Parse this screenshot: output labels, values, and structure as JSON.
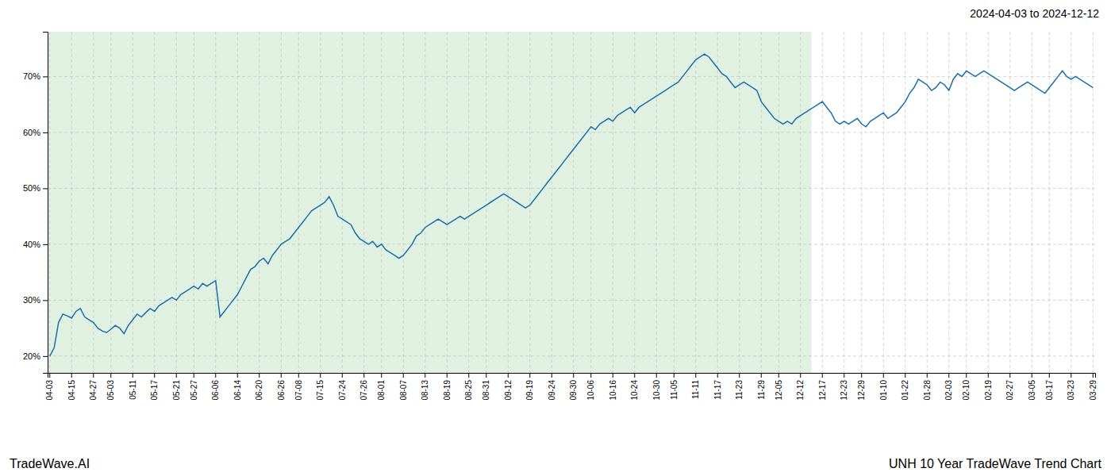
{
  "chart_data": {
    "type": "line",
    "title": "2024-04-03 to 2024-12-12",
    "annotations": [
      "TradeWave.AI",
      "UNH 10 Year TradeWave Trend Chart"
    ],
    "color": "#1a6eab",
    "grid": true,
    "band": {
      "from": "04-03",
      "to": "12-12",
      "color": "#c8e6c9"
    },
    "ylim": [
      17,
      78
    ],
    "yticks": [
      {
        "value": 20,
        "label": "20%"
      },
      {
        "value": 30,
        "label": "30%"
      },
      {
        "value": 40,
        "label": "40%"
      },
      {
        "value": 50,
        "label": "50%"
      },
      {
        "value": 60,
        "label": "60%"
      },
      {
        "value": 70,
        "label": "70%"
      }
    ],
    "categories": [
      "04-03",
      null,
      null,
      null,
      null,
      "04-15",
      null,
      null,
      null,
      null,
      "04-27",
      null,
      null,
      null,
      "05-03",
      null,
      null,
      null,
      null,
      "05-11",
      null,
      null,
      null,
      null,
      "05-17",
      null,
      null,
      null,
      null,
      "05-21",
      null,
      null,
      null,
      "05-27",
      null,
      null,
      null,
      null,
      "06-06",
      null,
      null,
      null,
      null,
      "06-14",
      null,
      null,
      null,
      null,
      "06-20",
      null,
      null,
      null,
      null,
      "06-26",
      null,
      null,
      null,
      "07-08",
      null,
      null,
      null,
      null,
      "07-15",
      null,
      null,
      null,
      null,
      "07-24",
      null,
      null,
      null,
      null,
      "07-26",
      null,
      null,
      null,
      "08-01",
      null,
      null,
      null,
      null,
      "08-07",
      null,
      null,
      null,
      null,
      "08-13",
      null,
      null,
      null,
      null,
      "08-19",
      null,
      null,
      null,
      null,
      "08-25",
      null,
      null,
      null,
      "08-31",
      null,
      null,
      null,
      null,
      "09-12",
      null,
      null,
      null,
      null,
      "09-19",
      null,
      null,
      null,
      null,
      "09-24",
      null,
      null,
      null,
      null,
      "09-30",
      null,
      null,
      null,
      "10-06",
      null,
      null,
      null,
      null,
      "10-16",
      null,
      null,
      null,
      null,
      "10-24",
      null,
      null,
      null,
      null,
      "10-30",
      null,
      null,
      null,
      "11-05",
      null,
      null,
      null,
      null,
      "11-11",
      null,
      null,
      null,
      null,
      "11-17",
      null,
      null,
      null,
      null,
      "11-23",
      null,
      null,
      null,
      null,
      "11-29",
      null,
      null,
      null,
      "12-05",
      null,
      null,
      null,
      null,
      "12-12",
      null,
      null,
      null,
      null,
      "12-17",
      null,
      null,
      null,
      null,
      "12-23",
      null,
      null,
      null,
      "12-29",
      null,
      null,
      null,
      null,
      "01-10",
      null,
      null,
      null,
      null,
      "01-22",
      null,
      null,
      null,
      null,
      "01-28",
      null,
      null,
      null,
      null,
      "02-03",
      null,
      null,
      null,
      "02-10",
      null,
      null,
      null,
      null,
      "02-19",
      null,
      null,
      null,
      null,
      "02-27",
      null,
      null,
      null,
      null,
      "03-05",
      null,
      null,
      null,
      "03-17",
      null,
      null,
      null,
      null,
      "03-23",
      null,
      null,
      null,
      null,
      "03-29"
    ],
    "values": [
      20.0,
      21.5,
      26.0,
      27.5,
      27.2,
      26.8,
      28.0,
      28.5,
      27.0,
      26.5,
      26.0,
      25.0,
      24.5,
      24.2,
      24.8,
      25.5,
      25.0,
      24.0,
      25.5,
      26.5,
      27.5,
      27.0,
      27.8,
      28.5,
      28.0,
      29.0,
      29.5,
      30.0,
      30.5,
      30.0,
      31.0,
      31.5,
      32.0,
      32.5,
      32.0,
      33.0,
      32.5,
      33.0,
      33.5,
      27.0,
      28.0,
      29.0,
      30.0,
      31.0,
      32.5,
      34.0,
      35.5,
      36.0,
      37.0,
      37.5,
      36.5,
      38.0,
      39.0,
      40.0,
      40.5,
      41.0,
      42.0,
      43.0,
      44.0,
      45.0,
      46.0,
      46.5,
      47.0,
      47.5,
      48.5,
      47.0,
      45.0,
      44.5,
      44.0,
      43.5,
      42.0,
      41.0,
      40.5,
      40.0,
      40.5,
      39.5,
      40.0,
      39.0,
      38.5,
      38.0,
      37.5,
      38.0,
      39.0,
      40.0,
      41.5,
      42.0,
      43.0,
      43.5,
      44.0,
      44.5,
      44.0,
      43.5,
      44.0,
      44.5,
      45.0,
      44.5,
      45.0,
      45.5,
      46.0,
      46.5,
      47.0,
      47.5,
      48.0,
      48.5,
      49.0,
      48.5,
      48.0,
      47.5,
      47.0,
      46.5,
      47.0,
      48.0,
      49.0,
      50.0,
      51.0,
      52.0,
      53.0,
      54.0,
      55.0,
      56.0,
      57.0,
      58.0,
      59.0,
      60.0,
      61.0,
      60.5,
      61.5,
      62.0,
      62.5,
      62.0,
      63.0,
      63.5,
      64.0,
      64.5,
      63.5,
      64.5,
      65.0,
      65.5,
      66.0,
      66.5,
      67.0,
      67.5,
      68.0,
      68.5,
      69.0,
      70.0,
      71.0,
      72.0,
      73.0,
      73.5,
      74.0,
      73.5,
      72.5,
      71.5,
      70.5,
      70.0,
      69.0,
      68.0,
      68.5,
      69.0,
      68.5,
      68.0,
      67.5,
      65.5,
      64.5,
      63.5,
      62.5,
      62.0,
      61.5,
      62.0,
      61.5,
      62.5,
      63.0,
      63.5,
      64.0,
      64.5,
      65.0,
      65.5,
      64.5,
      63.5,
      62.0,
      61.5,
      62.0,
      61.5,
      62.0,
      62.5,
      61.5,
      61.0,
      62.0,
      62.5,
      63.0,
      63.5,
      62.5,
      63.0,
      63.5,
      64.5,
      65.5,
      67.0,
      68.0,
      69.5,
      69.0,
      68.5,
      67.5,
      68.0,
      69.0,
      68.5,
      67.5,
      69.5,
      70.5,
      70.0,
      71.0,
      70.5,
      70.0,
      70.5,
      71.0,
      70.5,
      70.0,
      69.5,
      69.0,
      68.5,
      68.0,
      67.5,
      68.0,
      68.5,
      69.0,
      68.5,
      68.0,
      67.5,
      67.0,
      68.0,
      69.0,
      70.0,
      71.0,
      70.0,
      69.5,
      70.0,
      69.5,
      69.0,
      68.5,
      68.0
    ]
  }
}
